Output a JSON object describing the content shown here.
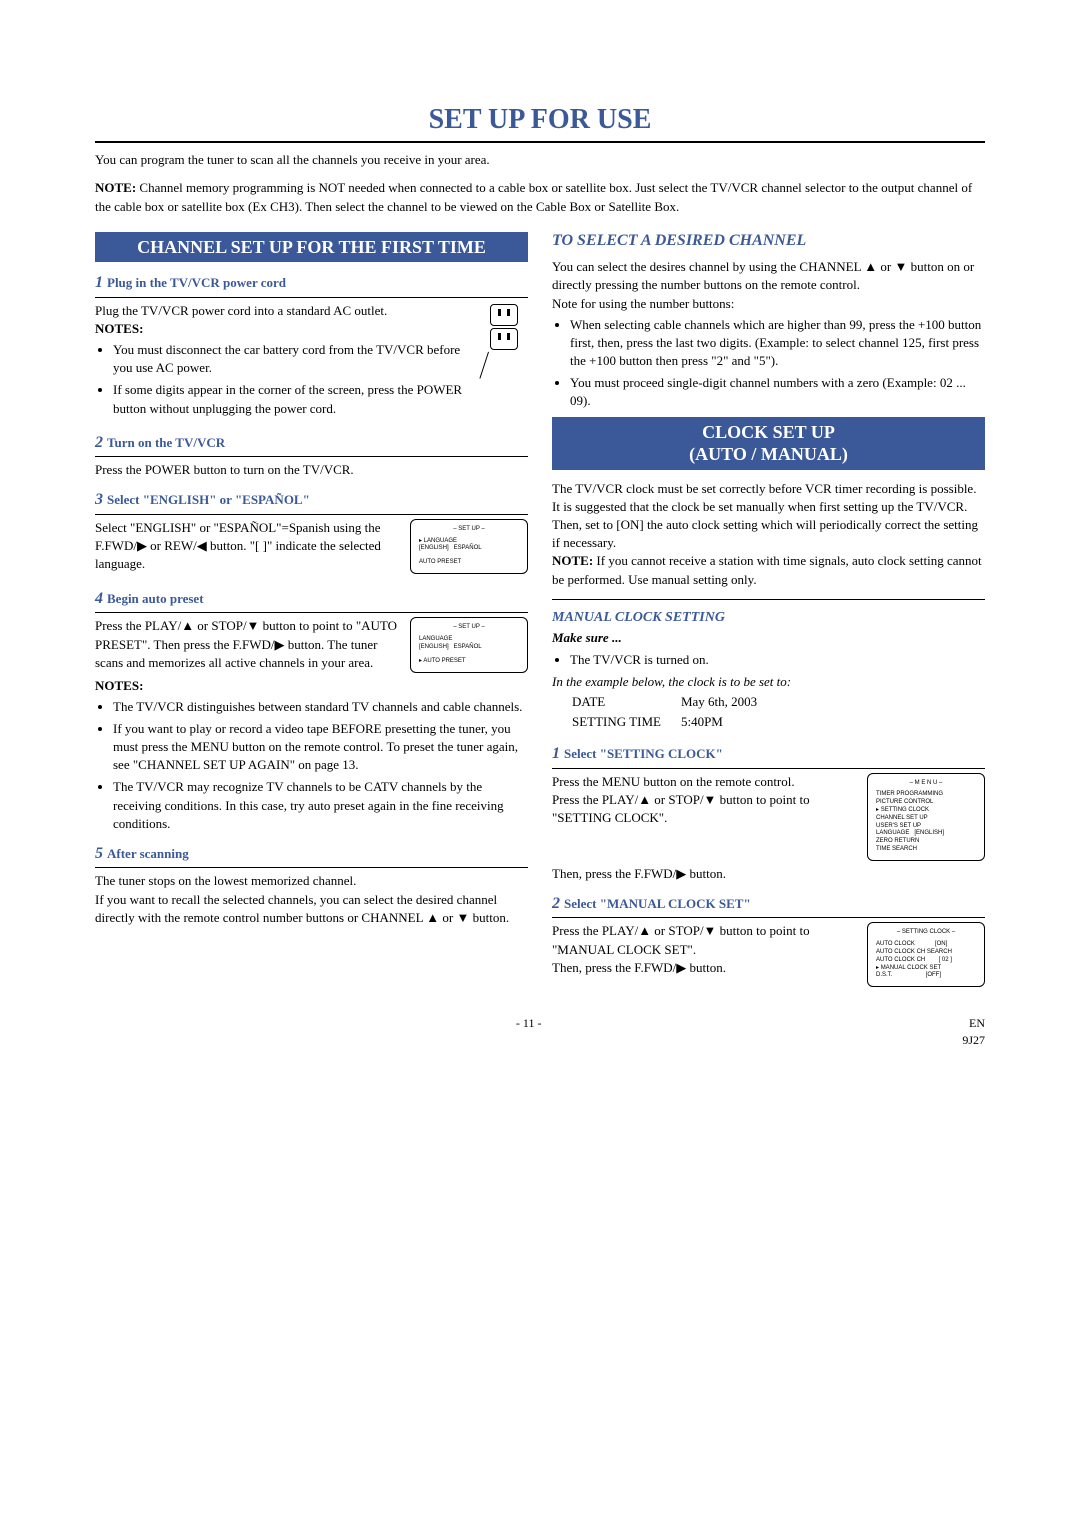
{
  "page": {
    "title": "SET UP FOR USE",
    "intro": "You can program the tuner to scan all the channels you receive in your area.",
    "note_label": "NOTE:",
    "note": " Channel memory programming is NOT needed when connected to a cable box or satellite box. Just select the TV/VCR channel selector to the output channel of the cable box or satellite box (Ex CH3). Then select the channel to be viewed on the Cable Box or Satellite Box."
  },
  "banner_channel": "CHANNEL SET UP FOR THE FIRST TIME",
  "step1": {
    "num": "1",
    "title": "Plug in the TV/VCR power cord",
    "body": "Plug the TV/VCR power cord into a standard AC outlet.",
    "notes_label": "NOTES:",
    "bullets": [
      "You must disconnect the car battery cord from the TV/VCR before you use AC power.",
      "If some digits appear in the corner of the screen, press the POWER button without unplugging the power cord."
    ]
  },
  "step2": {
    "num": "2",
    "title": "Turn on the TV/VCR",
    "body": "Press the POWER button to turn on the TV/VCR."
  },
  "step3": {
    "num": "3",
    "title": "Select \"ENGLISH\" or \"ESPAÑOL\"",
    "body": "Select \"ENGLISH\" or \"ESPAÑOL\"=Spanish using the F.FWD/▶ or REW/◀ button. \"[ ]\" indicate the selected language.",
    "osd_title": "– SET UP –",
    "osd_line1_ptr": "LANGUAGE",
    "osd_line1_rest": "[ENGLISH]   ESPAÑOL",
    "osd_line2": "AUTO PRESET"
  },
  "step4": {
    "num": "4",
    "title": "Begin auto preset",
    "body": "Press the PLAY/▲ or STOP/▼ button to point to \"AUTO PRESET\". Then press the F.FWD/▶ button. The tuner scans and memorizes all active channels in your area.",
    "notes_label": "NOTES:",
    "bullets": [
      "The TV/VCR distinguishes between standard TV channels and cable channels.",
      "If you want to play or record a video tape BEFORE presetting the tuner, you must press the MENU button on the remote control. To preset the tuner again, see \"CHANNEL SET UP AGAIN\" on page 13.",
      "The TV/VCR may recognize TV channels to be CATV channels by the receiving conditions. In this case, try auto preset again in the fine receiving conditions."
    ],
    "osd_title": "– SET UP –",
    "osd_line1": "LANGUAGE",
    "osd_line1b": "[ENGLISH]   ESPAÑOL",
    "osd_line2_ptr": "AUTO PRESET"
  },
  "step5": {
    "num": "5",
    "title": "After scanning",
    "body1": "The tuner stops on the lowest memorized channel.",
    "body2": "If you want to recall the selected channels, you can select the desired channel directly with the remote control number buttons or CHANNEL ▲ or ▼ button."
  },
  "select_desired": {
    "heading": "TO SELECT A DESIRED  CHANNEL",
    "p1": "You can select the desires channel by using the CHANNEL ▲ or ▼ button on or directly pressing the number buttons on the remote control.",
    "p2": "Note for using the number buttons:",
    "bullets": [
      "When selecting cable channels which are higher than 99, press the +100 button first, then, press the last two digits. (Example: to select channel 125, first press the +100 button then press \"2\" and \"5\").",
      "You must proceed single-digit channel numbers with a zero (Example: 02 ...  09)."
    ]
  },
  "banner_clock": "CLOCK SET UP\n(AUTO / MANUAL)",
  "clock_intro": {
    "p1": "The TV/VCR clock must be set correctly before VCR timer recording is possible. It is suggested that the clock be set manually when first setting up the TV/VCR. Then, set to [ON] the auto clock setting which will periodically correct the setting if necessary.",
    "note_label": "NOTE:",
    "note": " If you cannot receive a station with time signals, auto clock setting cannot be performed. Use manual setting only."
  },
  "manual_clock": {
    "heading": "MANUAL CLOCK SETTING",
    "make_sure": "Make sure ...",
    "bullet": "The TV/VCR is turned on.",
    "example_line": "In the example below, the clock is to be set to:",
    "date_label": "DATE",
    "date_value": "May 6th, 2003",
    "time_label": "SETTING TIME",
    "time_value": "5:40PM"
  },
  "clock_step1": {
    "num": "1",
    "title": "Select \"SETTING CLOCK\"",
    "body1": "Press the MENU button on the remote control.",
    "body2": "Press the PLAY/▲ or STOP/▼ button to point to \"SETTING CLOCK\".",
    "body3": "Then, press the F.FWD/▶ button.",
    "osd_title": "– M E N U –",
    "osd_lines": [
      "TIMER PROGRAMMING",
      "PICTURE CONTROL",
      "SETTING CLOCK",
      "CHANNEL SET UP",
      "USER'S SET UP",
      "LANGUAGE   [ENGLISH]",
      "ZERO RETURN",
      "TIME SEARCH"
    ],
    "osd_ptr_index": 2
  },
  "clock_step2": {
    "num": "2",
    "title": "Select \"MANUAL CLOCK SET\"",
    "body1": "Press the PLAY/▲ or STOP/▼ button to point to \"MANUAL CLOCK SET\".",
    "body2": "Then, press the F.FWD/▶ button.",
    "osd_title": "– SETTING CLOCK –",
    "osd_lines": [
      "AUTO CLOCK            [ON]",
      "AUTO CLOCK CH SEARCH",
      "AUTO CLOCK CH        [ 02 ]",
      "MANUAL CLOCK SET",
      "D.S.T.                    [OFF]"
    ],
    "osd_ptr_index": 3
  },
  "footer": {
    "page": "- 11 -",
    "right1": "EN",
    "right2": "9J27"
  },
  "colors": {
    "accent": "#3b5998"
  }
}
